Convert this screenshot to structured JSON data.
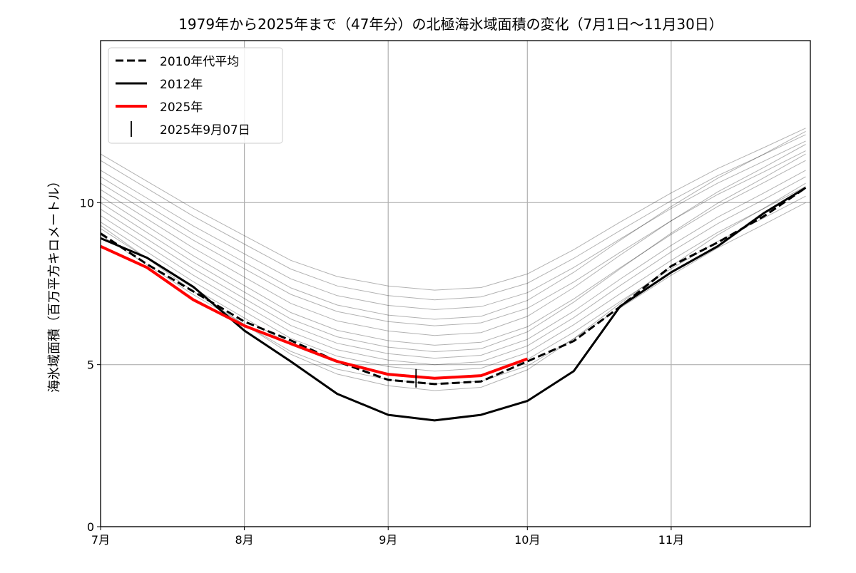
{
  "chart_data": {
    "type": "line",
    "title": "1979年から2025年まで（47年分）の北極海氷域面積の変化（7月1日〜11月30日）",
    "xlabel": "",
    "ylabel": "海氷域面積（百万平方キロメートル）",
    "xlim": [
      "07-01",
      "11-30"
    ],
    "ylim": [
      0,
      15
    ],
    "xticks": [
      {
        "date": "07-01",
        "label": "7月"
      },
      {
        "date": "08-01",
        "label": "8月"
      },
      {
        "date": "09-01",
        "label": "9月"
      },
      {
        "date": "10-01",
        "label": "10月"
      },
      {
        "date": "11-01",
        "label": "11月"
      }
    ],
    "yticks": [
      0,
      5,
      10
    ],
    "grid": true,
    "legend_position": "top-left",
    "x": [
      "07-01",
      "07-11",
      "07-21",
      "08-01",
      "08-11",
      "08-21",
      "09-01",
      "09-11",
      "09-21",
      "10-01",
      "10-11",
      "10-21",
      "11-01",
      "11-11",
      "11-21",
      "11-30"
    ],
    "other_years": {
      "color": "#000000",
      "values": [
        [
          11.5,
          10.66,
          9.82,
          8.98,
          8.22,
          7.72,
          7.43,
          7.3,
          7.38,
          7.8,
          8.55,
          9.4,
          10.3,
          11.05,
          11.7,
          12.3
        ],
        [
          11.3,
          10.44,
          9.58,
          8.72,
          7.95,
          7.43,
          7.13,
          7.0,
          7.09,
          7.51,
          8.28,
          9.14,
          10.06,
          10.83,
          11.49,
          12.1
        ],
        [
          11.0,
          10.14,
          9.28,
          8.42,
          7.65,
          7.13,
          6.83,
          6.7,
          6.79,
          7.22,
          8.0,
          8.88,
          9.82,
          10.6,
          11.28,
          11.9
        ],
        [
          10.8,
          9.92,
          9.04,
          8.16,
          7.37,
          6.84,
          6.53,
          6.4,
          6.49,
          6.98,
          7.85,
          8.84,
          9.88,
          10.75,
          11.5,
          12.2
        ],
        [
          10.6,
          9.72,
          8.84,
          7.96,
          7.17,
          6.64,
          6.33,
          6.2,
          6.29,
          6.74,
          7.55,
          8.47,
          9.44,
          10.25,
          10.95,
          11.6
        ],
        [
          10.4,
          9.5,
          8.6,
          7.7,
          6.89,
          6.35,
          6.04,
          5.9,
          5.99,
          6.49,
          7.38,
          8.38,
          9.44,
          10.33,
          11.09,
          11.8
        ],
        [
          10.2,
          9.28,
          8.36,
          7.44,
          6.61,
          6.06,
          5.74,
          5.6,
          5.69,
          6.17,
          7.03,
          7.99,
          9.02,
          9.88,
          10.62,
          11.3
        ],
        [
          10.0,
          9.08,
          8.16,
          7.24,
          6.41,
          5.86,
          5.54,
          5.4,
          5.49,
          6.01,
          6.93,
          7.96,
          9.06,
          9.98,
          10.77,
          11.5
        ],
        [
          9.8,
          8.88,
          7.96,
          7.04,
          6.21,
          5.66,
          5.34,
          5.2,
          5.29,
          5.78,
          6.65,
          7.64,
          8.68,
          9.55,
          10.3,
          11.0
        ],
        [
          9.6,
          8.68,
          7.76,
          6.84,
          6.01,
          5.46,
          5.14,
          5.0,
          5.09,
          5.58,
          6.45,
          7.44,
          8.48,
          9.35,
          10.1,
          10.8
        ],
        [
          9.4,
          8.48,
          7.56,
          6.64,
          5.81,
          5.26,
          4.94,
          4.8,
          4.89,
          5.37,
          6.23,
          7.19,
          8.22,
          9.08,
          9.82,
          10.5
        ],
        [
          9.2,
          8.28,
          7.36,
          6.44,
          5.61,
          5.06,
          4.74,
          4.6,
          4.69,
          5.16,
          6.0,
          6.95,
          7.96,
          8.8,
          9.53,
          10.2
        ],
        [
          9.0,
          8.08,
          7.16,
          6.24,
          5.41,
          4.86,
          4.54,
          4.4,
          4.49,
          4.96,
          5.8,
          6.75,
          7.76,
          8.6,
          9.33,
          10.0
        ],
        [
          9.3,
          8.28,
          7.26,
          6.24,
          5.32,
          4.71,
          4.35,
          4.2,
          4.3,
          4.84,
          5.8,
          6.89,
          8.04,
          9.0,
          9.83,
          10.6
        ]
      ]
    },
    "series": [
      {
        "name": "2010年代平均",
        "color": "#000000",
        "style": "dashed",
        "values": [
          9.05,
          8.1,
          7.26,
          6.33,
          5.75,
          5.1,
          4.53,
          4.4,
          4.48,
          5.1,
          5.73,
          6.79,
          8.04,
          8.77,
          9.58,
          10.46
        ]
      },
      {
        "name": "2012年",
        "color": "#000000",
        "style": "solid",
        "values": [
          8.9,
          8.3,
          7.4,
          6.05,
          5.1,
          4.1,
          3.45,
          3.28,
          3.45,
          3.88,
          4.8,
          6.8,
          7.85,
          8.65,
          9.68,
          10.46
        ]
      },
      {
        "name": "2025年",
        "color": "#ff0000",
        "style": "solid",
        "values": [
          8.65,
          8.0,
          7.0,
          6.2,
          5.65,
          5.1,
          4.7,
          4.58,
          4.66,
          5.18,
          null,
          null,
          null,
          null,
          null,
          null
        ]
      }
    ],
    "marker": {
      "name": "2025年9月07日",
      "date": "09-07",
      "value": 4.58,
      "color": "#000000"
    }
  }
}
